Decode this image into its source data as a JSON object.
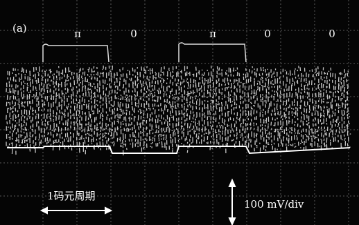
{
  "panel_label": "(a)",
  "symbols": [
    "π",
    "0",
    "π",
    "0",
    "0"
  ],
  "time_scale_label": "1码元周期",
  "voltage_scale_label": "100 mV/div"
}
